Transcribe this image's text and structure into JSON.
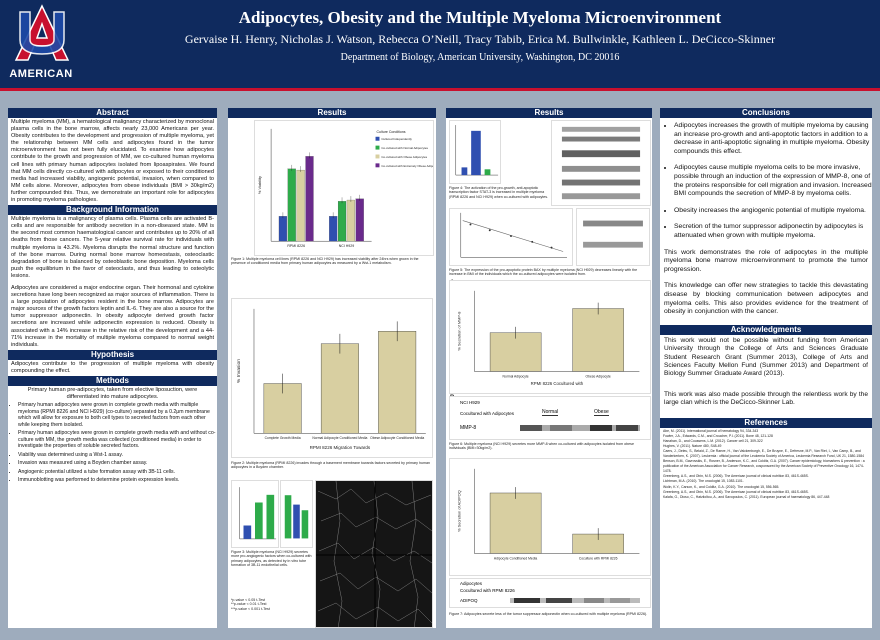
{
  "header": {
    "logo_text": "AMERICAN",
    "title": "Adipocytes, Obesity and the Multiple Myeloma Microenvironment",
    "authors": "Gervaise H. Henry, Nicholas J. Watson, Rebecca O’Neill, Tracy Tabib, Erica M. Bullwinkle, Kathleen L. DeCicco-Skinner",
    "department": "Department of Biology, American University, Washington, DC 20016"
  },
  "abstract": {
    "heading": "Abstract",
    "text": "Multiple myeloma (MM), a hematological malignancy characterized by monoclonal plasma cells in the bone marrow, affects nearly 23,000 Americans per year. Obesity contributes to the development and progression of multiple myeloma, yet the relationship between MM cells and adipocytes found in the tumor microenvironment has not been fully elucidated. To examine how adipocytes contribute to the growth and progression of MM, we co-cultured human myeloma cell lines with primary human adipocytes isolated from lipoaspirates. We found that MM cells directly co-cultured with adipocytes or exposed to their conditioned media had increased viability, angiogenic potential, invasion, when compared to MM cells alone. Moreover, adipocytes from obese individuals (BMI > 30kg/m2) further compounded this. Thus, we demonstrate an important role for adipocytes in promoting myeloma pathologies."
  },
  "background": {
    "heading": "Background Information",
    "p1": "Multiple myeloma is a malignancy of plasma cells. Plasma cells are activated B-cells and are responsible for antibody secretion in a non-diseased state. MM is the second most common haematological cancer and contributes up to 20% of all deaths from those cancers. The 5-year relative survival rate for individuals with multiple myeloma is 43.2%. Myeloma disrupts the normal structure and function of the bone marrow. During normal bone marrow homeostasis, osteoclastic degradation of bone is balanced by osteoblastic bone deposition. Myeloma cells push the equilibrium in the favor of osteoclasts, and thus leading to osteolytic lesions.",
    "p2": "Adipocytes are considered a major endocrine organ. Their hormonal and cytokine secretions have long been recognized as major sources of inflammation. There is a large population of adipocytes resident in the bone marrow. Adipocytes are major sources of the growth factors leptin and IL-6. They are also a source for the tumor suppressor adiponectin. In obesity adipocyte derived growth factor secretions are increased while adiponectin expression is reduced. Obesity is associated with a 14% increase in the relative risk of the development and a 44-71% increase in the mortality of multiple myeloma compared to normal weight individuals."
  },
  "hypothesis": {
    "heading": "Hypothesis",
    "text": "Adipocytes contribute to the progression of multiple myeloma with obesity compounding the effect."
  },
  "methods": {
    "heading": "Methods",
    "intro": "Primary human pre-adipocytes, taken from elective liposuction, were differentiated into mature adipocytes.",
    "items": [
      "Primary human adipocytes were grown in complete growth media with multiple myeloma (RPMI 8226 and NCI H929) (co-culture) separated by a 0.2μm membrane which will allow for exposure to both cell types to secreted factors from each other while keeping them isolated.",
      "Primary human adipocytes were grown in complete growth media with and without co-culture with MM, the growth media was collected (conditioned media) in order to investigate the properties of soluble secreted factors.",
      "Viability was determined using a Wst-1 assay.",
      "Invasion was measured using a Boyden chamber assay.",
      "Angiogenic potential utilized a tube formation assay with 3B-11 cells.",
      "Immunoblotting was performed to determine protein expression levels."
    ]
  },
  "results_left": {
    "heading": "Results",
    "fig1_caption": "Figure 1: Multiple myeloma cell lines (RPMI 8226 and NCI H929) has increased viability after 24hrs when grown in the presence of conditioned media from primary human adipocytes as measured by a Wst-1 metabolism.",
    "fig2_caption": "Figure 2: Multiple myeloma (RPMI 8226) invades through a basement membrane towards factors secreted by primary human adipocytes in a Boyden chamber.",
    "fig3_caption": "Figure 3: Multiple myeloma (NCI H929) secretes more pro-angiogenic factors when co-cultured with primary adipocytes, as detected by in vitro tube formation of 3B-11 endothelial cells.",
    "pvalues": [
      "*p-value < 0.05 t-Test",
      "**p-value < 0.01 t-Test",
      "***p-value < 0.001 t-Test"
    ],
    "fig2_xtitle": "RPMI 8226 Migration Towards",
    "fig2_categories": [
      "Complete Growth Media",
      "Normal Adipocyte Conditioned Media",
      "Obese Adipocyte Conditioned Media"
    ],
    "fig1_xcats": [
      "RPMI 8226",
      "NCI H929"
    ],
    "fig1_legend_title": "Culture Conditions",
    "fig1_legend": [
      "Cultured Independently",
      "Co-cultured with Normal Adipocytes",
      "Co-cultured with Obese Adipocytes",
      "Co-cultured with Extremely Obese Adipocytes"
    ],
    "fig1_ylabel": "% Viability",
    "fig2_ylabel": "% Invasion"
  },
  "results_right": {
    "heading": "Results",
    "fig4_caption": "Figure 4: The activation of the pro-growth, anti-apoptotic transcription factor STAT-3 is increased in multiple myeloma (RPMI 8226 and NCI H929) when co-cultured with adipocytes.",
    "fig5_caption": "Figure 5: The expression of the pro-apoptotic protein BAX by multiple myeloma (NCI H929) decreases linearly with the increase in BMI of the individuals which the co-cultured adipocytes were isolated from.",
    "fig6_caption": "Figure 6: Multiple myeloma (NCI H929) secretes more MMP-8 when co-cultured with adipocytes isolated from obese individuals (BMI>30kg/m2).",
    "fig7_caption": "Figure 7: Adipocytes secrete less of the tumor suppressor adiponectin when co-cultured with multiple myeloma (RPMI 8226).",
    "fig6_xtitle": "RPMI 8226 Cocultured with",
    "fig6_cats": [
      "Normal Adipocyte",
      "Obese Adipocyte"
    ],
    "fig6_blot_labels": [
      "NCI H929",
      "Cocultured with Adipocytes",
      "MMP-8"
    ],
    "fig6_blot_headers": [
      "Normal",
      "Obese"
    ],
    "fig7_cats": [
      "Adipocyte Conditioned Media",
      "Coculture with RPMI 8226"
    ],
    "fig7_blot_labels": [
      "Adipocytes",
      "Cocultured with RPMI 8226",
      "ADIPOQ"
    ],
    "fig6_ylabel": "% Secretion of MMP-8",
    "fig7_ylabel": "% Secretion of ADIPOQ",
    "panel_a": "A",
    "panel_b": "B"
  },
  "conclusions": {
    "heading": "Conclusions",
    "items": [
      "Adipocytes increases the growth of multiple myeloma by causing an increase pro-growth and anti-apoptotic factors in addition to a decrease in anti-apoptotic signaling in multiple myeloma. Obesity compounds this effect.",
      "Adipocytes cause multiple myeloma cells to be more invasive, possible through an induction of the expression of MMP-8, one of the proteins responsible for cell migration and invasion. Increased BMI compounds the secretion of MMP-8 by myeloma cells.",
      "Obesity increases the angiogenic potential of multiple myeloma.",
      "Secretion of the tumor suppressor adiponectin by adipocytes is attenuated when grown with multiple myeloma."
    ],
    "p1": "This work demonstrates the role of adipocytes in the multiple myeloma bone marrow microenvironment to promote the tumor progression.",
    "p2": "This knowledge can offer new strategies to tackle this devastating disease by blocking communication between adipocytes and myeloma cells. This also provides evidence for the treatment of obesity in conjunction with the cancer."
  },
  "acknowledgments": {
    "heading": "Acknowledgments",
    "p1": "This work would not be possible without funding from American University through the College of Arts and Sciences Graduate Student Research Grant (Summer 2013), College of Arts and Sciences Faculty Mellon Fund (Summer 2013) and Department of Biology Summer Graduate Award (2013).",
    "p2": "This work was also made possible through the relentless work by the large clan which is the DeCicco-Skinner Lab."
  },
  "references": {
    "heading": "References",
    "items": [
      "Abe, M. (2011). International journal of hematology 94, 334-343",
      "Fowler, J.A., Edwards, C.M., and Croucher, P.I. (2011). Bone 48, 121-128",
      "Hanahan, D., and Coussens, L.M. (2012). Cancer cell 21, 309-322",
      "Hughes, V. (2011). Nature 480, S48-49",
      "Caers, J., Deleu, S., Belaid, Z., De Raeve, H., Van Valckenborgh, E., De Bruyne, E., Defresne, M.P., Van Riet, I., Van Camp, B., and Vanderkerken, K. (2007). Leukemia : official journal of the Leukemia Society of America, Leukemia Research Fund, UK 21, 1580-1584",
      "Benson, B.M., Gavrovskis, E., Rosner, B., Anderson, K.C., and Colditz, G.A. (2007). Cancer epidemiology, biomarkers & prevention : a publication of the American Association for Cancer Research, cosponsored by the American Society of Preventive Oncology 16, 1474-1478.",
      "Greenberg, A.S., and Obin, M.S. (2006). The American journal of clinical nutrition 83, 461S-465S.",
      "Lichtman, M.A. (2010). The oncologist 15, 1083-1101.",
      "Wolin, K.Y., Carson, K., and Colditz, G.A. (2010). The oncologist 15, 556-565.",
      "Greenberg, A.S., and Obin, M.S. (2006). The American journal of clinical nutrition 83, 461S-465S.",
      "Kalafa, G., Dioso, C., Hatziioltou, A., and Savopoulos, C. (2011). European journal of haematology 86, 447-448"
    ]
  },
  "chart_data": [
    {
      "type": "bar",
      "categories": [
        "RPMI 8226",
        "NCI H929"
      ],
      "series": [
        {
          "name": "Cultured Independently",
          "values": [
            100,
            100
          ]
        },
        {
          "name": "Co-cultured with Normal Adipocytes",
          "values": [
            290,
            160
          ]
        },
        {
          "name": "Co-cultured with Obese Adipocytes",
          "values": [
            285,
            165
          ]
        },
        {
          "name": "Co-cultured with Extremely Obese Adipocytes",
          "values": [
            340,
            170
          ]
        }
      ],
      "ylabel": "% Viability",
      "ylim": [
        0,
        450
      ]
    },
    {
      "type": "bar",
      "categories": [
        "Complete Growth Media",
        "Normal Adipocyte Conditioned Media",
        "Obese Adipocyte Conditioned Media"
      ],
      "values": [
        100,
        180,
        205
      ],
      "ylabel": "% Invasion",
      "xlabel": "RPMI 8226 Migration Towards",
      "ylim": [
        0,
        250
      ]
    },
    {
      "type": "bar",
      "categories": [
        "Normal Adipocyte",
        "Obese Adipocyte"
      ],
      "values": [
        120,
        195
      ],
      "ylabel": "% Secretion of MMP-8",
      "xlabel": "RPMI 8226 Cocultured with",
      "ylim": [
        0,
        250
      ]
    },
    {
      "type": "bar",
      "categories": [
        "Adipocyte Conditioned Media",
        "Coculture with RPMI 8226"
      ],
      "values": [
        100,
        32
      ],
      "ylabel": "% Secretion of ADIPOQ",
      "ylim": [
        0,
        140
      ]
    }
  ],
  "colors": {
    "navy": "#0f2a5e",
    "accent_red": "#c8102e",
    "bar_blue": "#2f4fb0",
    "bar_green": "#2eab4a",
    "bar_tan": "#d8cfa1",
    "bar_purple": "#6a2a8c"
  }
}
